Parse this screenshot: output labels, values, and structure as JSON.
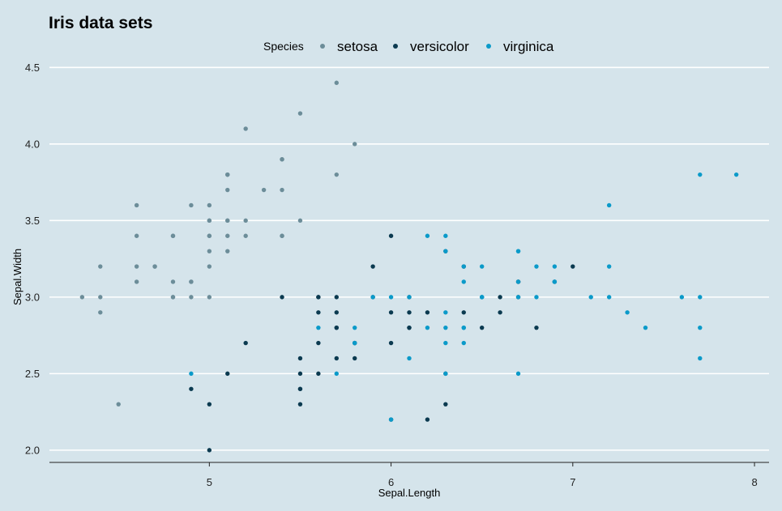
{
  "chart_data": {
    "type": "scatter",
    "title": "Iris data sets",
    "xlabel": "Sepal.Length",
    "ylabel": "Sepal.Width",
    "xlim": [
      4.12,
      8.08
    ],
    "ylim": [
      1.92,
      4.56
    ],
    "xticks": [
      5,
      6,
      7,
      8
    ],
    "yticks": [
      2.0,
      2.5,
      3.0,
      3.5,
      4.0,
      4.5
    ],
    "xtick_labels": [
      "5",
      "6",
      "7",
      "8"
    ],
    "ytick_labels": [
      "2.0",
      "2.5",
      "3.0",
      "3.5",
      "4.0",
      "4.5"
    ],
    "grid": "horizontal",
    "legend": {
      "title": "Species",
      "position": "top"
    },
    "series": [
      {
        "name": "setosa",
        "color": "#6c8d99",
        "points": [
          [
            5.1,
            3.5
          ],
          [
            4.9,
            3.0
          ],
          [
            4.7,
            3.2
          ],
          [
            4.6,
            3.1
          ],
          [
            5.0,
            3.6
          ],
          [
            5.4,
            3.9
          ],
          [
            4.6,
            3.4
          ],
          [
            5.0,
            3.4
          ],
          [
            4.4,
            2.9
          ],
          [
            4.9,
            3.1
          ],
          [
            5.4,
            3.7
          ],
          [
            4.8,
            3.4
          ],
          [
            4.8,
            3.0
          ],
          [
            4.3,
            3.0
          ],
          [
            5.8,
            4.0
          ],
          [
            5.7,
            4.4
          ],
          [
            5.4,
            3.9
          ],
          [
            5.1,
            3.5
          ],
          [
            5.7,
            3.8
          ],
          [
            5.1,
            3.8
          ],
          [
            5.4,
            3.4
          ],
          [
            5.1,
            3.7
          ],
          [
            4.6,
            3.6
          ],
          [
            5.1,
            3.3
          ],
          [
            4.8,
            3.4
          ],
          [
            5.0,
            3.0
          ],
          [
            5.0,
            3.4
          ],
          [
            5.2,
            3.5
          ],
          [
            5.2,
            3.4
          ],
          [
            4.7,
            3.2
          ],
          [
            4.8,
            3.1
          ],
          [
            5.4,
            3.4
          ],
          [
            5.2,
            4.1
          ],
          [
            5.5,
            4.2
          ],
          [
            4.9,
            3.1
          ],
          [
            5.0,
            3.2
          ],
          [
            5.5,
            3.5
          ],
          [
            4.9,
            3.6
          ],
          [
            4.4,
            3.0
          ],
          [
            5.1,
            3.4
          ],
          [
            5.0,
            3.5
          ],
          [
            4.5,
            2.3
          ],
          [
            4.4,
            3.2
          ],
          [
            5.0,
            3.5
          ],
          [
            5.1,
            3.8
          ],
          [
            4.8,
            3.0
          ],
          [
            5.1,
            3.8
          ],
          [
            4.6,
            3.2
          ],
          [
            5.3,
            3.7
          ],
          [
            5.0,
            3.3
          ]
        ]
      },
      {
        "name": "versicolor",
        "color": "#0b3a50",
        "points": [
          [
            7.0,
            3.2
          ],
          [
            6.4,
            3.2
          ],
          [
            6.9,
            3.1
          ],
          [
            5.5,
            2.3
          ],
          [
            6.5,
            2.8
          ],
          [
            5.7,
            2.8
          ],
          [
            6.3,
            3.3
          ],
          [
            4.9,
            2.4
          ],
          [
            6.6,
            2.9
          ],
          [
            5.2,
            2.7
          ],
          [
            5.0,
            2.0
          ],
          [
            5.9,
            3.0
          ],
          [
            6.0,
            2.2
          ],
          [
            6.1,
            2.9
          ],
          [
            5.6,
            2.9
          ],
          [
            6.7,
            3.1
          ],
          [
            5.6,
            3.0
          ],
          [
            5.8,
            2.7
          ],
          [
            6.2,
            2.2
          ],
          [
            5.6,
            2.5
          ],
          [
            5.9,
            3.2
          ],
          [
            6.1,
            2.8
          ],
          [
            6.3,
            2.5
          ],
          [
            6.1,
            2.8
          ],
          [
            6.4,
            2.9
          ],
          [
            6.6,
            3.0
          ],
          [
            6.8,
            2.8
          ],
          [
            6.7,
            3.0
          ],
          [
            6.0,
            2.9
          ],
          [
            5.7,
            2.6
          ],
          [
            5.5,
            2.4
          ],
          [
            5.5,
            2.4
          ],
          [
            5.8,
            2.7
          ],
          [
            6.0,
            2.7
          ],
          [
            5.4,
            3.0
          ],
          [
            6.0,
            3.4
          ],
          [
            6.7,
            3.1
          ],
          [
            6.3,
            2.3
          ],
          [
            5.6,
            3.0
          ],
          [
            5.5,
            2.5
          ],
          [
            5.5,
            2.6
          ],
          [
            6.1,
            3.0
          ],
          [
            5.8,
            2.6
          ],
          [
            5.0,
            2.3
          ],
          [
            5.6,
            2.7
          ],
          [
            5.7,
            3.0
          ],
          [
            5.7,
            2.9
          ],
          [
            6.2,
            2.9
          ],
          [
            5.1,
            2.5
          ],
          [
            5.7,
            2.8
          ]
        ]
      },
      {
        "name": "virginica",
        "color": "#0b9ac9",
        "points": [
          [
            6.3,
            3.3
          ],
          [
            5.8,
            2.7
          ],
          [
            7.1,
            3.0
          ],
          [
            6.3,
            2.9
          ],
          [
            6.5,
            3.0
          ],
          [
            7.6,
            3.0
          ],
          [
            4.9,
            2.5
          ],
          [
            7.3,
            2.9
          ],
          [
            6.7,
            2.5
          ],
          [
            7.2,
            3.6
          ],
          [
            6.5,
            3.2
          ],
          [
            6.4,
            2.7
          ],
          [
            6.8,
            3.0
          ],
          [
            5.7,
            2.5
          ],
          [
            5.8,
            2.8
          ],
          [
            6.4,
            3.2
          ],
          [
            6.5,
            3.0
          ],
          [
            7.7,
            3.8
          ],
          [
            7.7,
            2.6
          ],
          [
            6.0,
            2.2
          ],
          [
            6.9,
            3.2
          ],
          [
            5.6,
            2.8
          ],
          [
            7.7,
            2.8
          ],
          [
            6.3,
            2.7
          ],
          [
            6.7,
            3.3
          ],
          [
            7.2,
            3.2
          ],
          [
            6.2,
            2.8
          ],
          [
            6.1,
            3.0
          ],
          [
            6.4,
            2.8
          ],
          [
            7.2,
            3.0
          ],
          [
            7.4,
            2.8
          ],
          [
            7.9,
            3.8
          ],
          [
            6.4,
            2.8
          ],
          [
            6.3,
            2.8
          ],
          [
            6.1,
            2.6
          ],
          [
            7.7,
            3.0
          ],
          [
            6.3,
            3.4
          ],
          [
            6.4,
            3.1
          ],
          [
            6.0,
            3.0
          ],
          [
            6.9,
            3.1
          ],
          [
            6.7,
            3.1
          ],
          [
            6.9,
            3.1
          ],
          [
            5.8,
            2.7
          ],
          [
            6.8,
            3.2
          ],
          [
            6.7,
            3.3
          ],
          [
            6.7,
            3.0
          ],
          [
            6.3,
            2.5
          ],
          [
            6.5,
            3.0
          ],
          [
            6.2,
            3.4
          ],
          [
            5.9,
            3.0
          ]
        ]
      }
    ]
  }
}
